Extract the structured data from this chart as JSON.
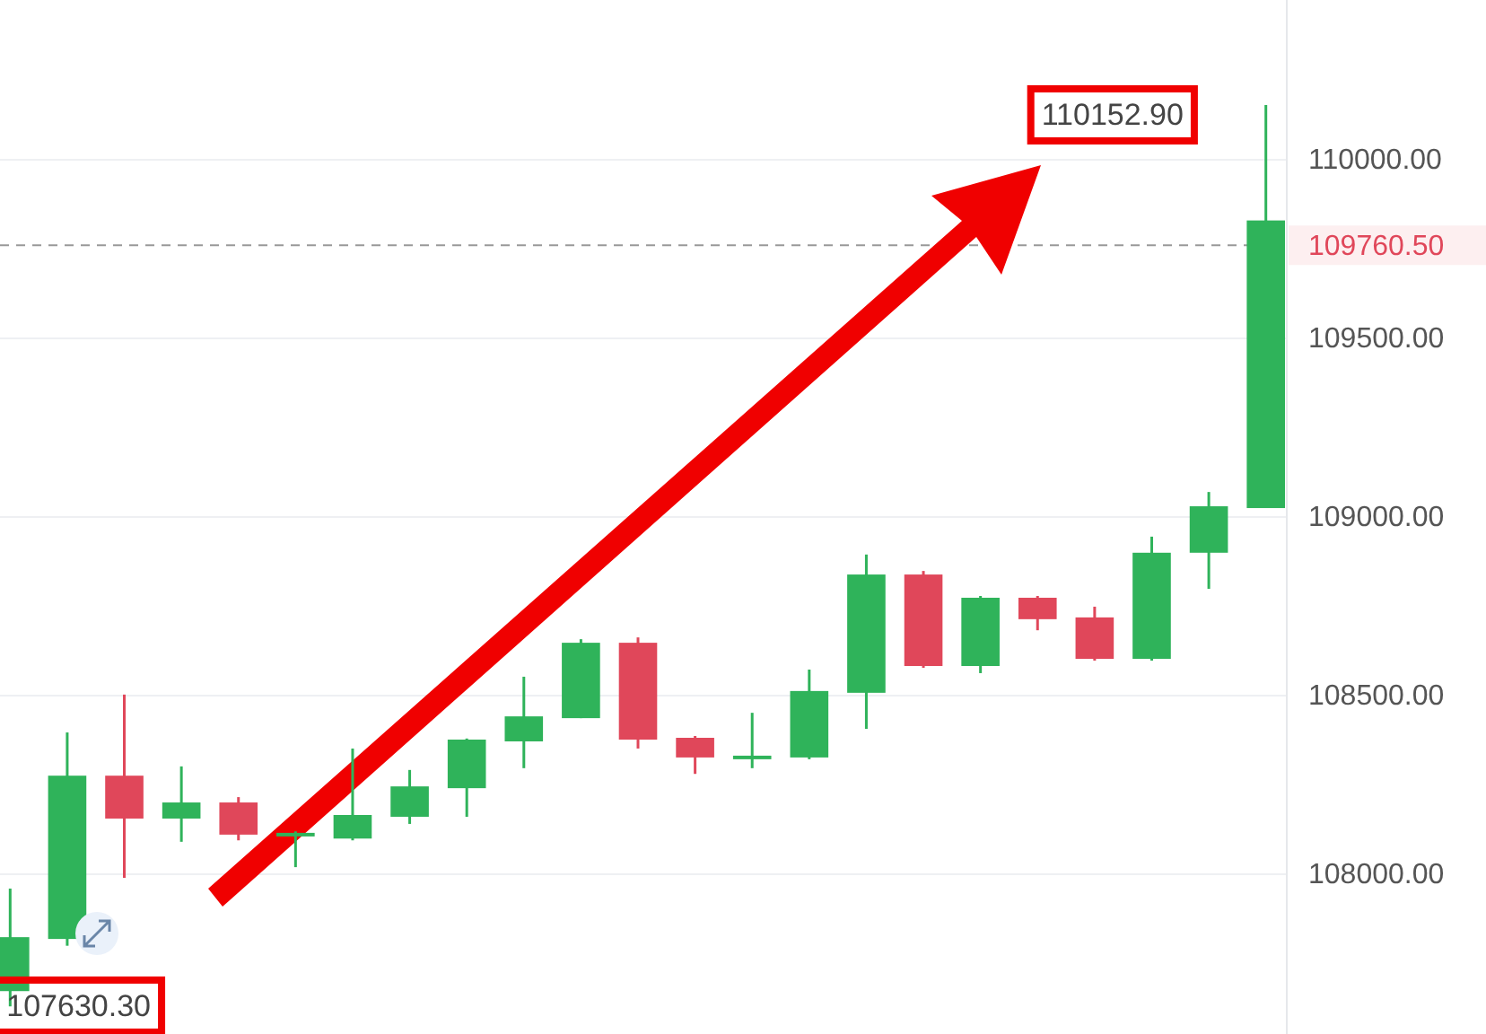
{
  "chart_data": {
    "type": "candlestick",
    "categories": [
      null,
      null,
      null,
      null,
      null,
      null,
      null,
      null,
      null,
      null,
      null,
      null,
      null,
      null,
      null,
      null,
      null,
      null,
      null,
      null,
      null,
      null,
      null
    ],
    "ohlc": [
      [
        107673,
        107960,
        107630.3,
        107824
      ],
      [
        107819,
        108397,
        107800,
        108276
      ],
      [
        108276,
        108503,
        107990,
        108156
      ],
      [
        108156,
        108302,
        108091,
        108201
      ],
      [
        108201,
        108216,
        108095,
        108111
      ],
      [
        108106,
        108120,
        108020,
        108116
      ],
      [
        108100,
        108352,
        108095,
        108166
      ],
      [
        108161,
        108292,
        108141,
        108246
      ],
      [
        108241,
        108380,
        108161,
        108377
      ],
      [
        108372,
        108553,
        108297,
        108442
      ],
      [
        108437,
        108658,
        108437,
        108648
      ],
      [
        108648,
        108663,
        108352,
        108377
      ],
      [
        108382,
        108387,
        108281,
        108327
      ],
      [
        108322,
        108452,
        108297,
        108332
      ],
      [
        108327,
        108573,
        108322,
        108513
      ],
      [
        108508,
        108895,
        108407,
        108839
      ],
      [
        108839,
        108849,
        108578,
        108583
      ],
      [
        108583,
        108779,
        108563,
        108774
      ],
      [
        108774,
        108779,
        108683,
        108714
      ],
      [
        108719,
        108749,
        108598,
        108603
      ],
      [
        108603,
        108945,
        108598,
        108900
      ],
      [
        108900,
        109070,
        108799,
        109030
      ],
      [
        109025,
        110152.9,
        109025,
        109830
      ]
    ],
    "colors": [
      "#2fb35a",
      "#2fb35a",
      "#e0475a",
      "#2fb35a",
      "#e0475a",
      "#2fb35a",
      "#2fb35a",
      "#2fb35a",
      "#2fb35a",
      "#2fb35a",
      "#2fb35a",
      "#e0475a",
      "#e0475a",
      "#2fb35a",
      "#2fb35a",
      "#2fb35a",
      "#e0475a",
      "#2fb35a",
      "#e0475a",
      "#e0475a",
      "#2fb35a",
      "#2fb35a",
      "#2fb35a"
    ],
    "ylim": [
      107553,
      110447
    ],
    "yticks": [
      {
        "value": 108000,
        "label": "108000.00"
      },
      {
        "value": 108500,
        "label": "108500.00"
      },
      {
        "value": 109000,
        "label": "109000.00"
      },
      {
        "value": 109500,
        "label": "109500.00"
      },
      {
        "value": 110000,
        "label": "110000.00"
      }
    ],
    "grid": "y",
    "ref_lines": [
      {
        "axis": "y",
        "value": 109760.5,
        "label": "109760.50",
        "line_style": "dashed"
      }
    ],
    "annotations": [
      "110152.90",
      "107630.30"
    ]
  }
}
